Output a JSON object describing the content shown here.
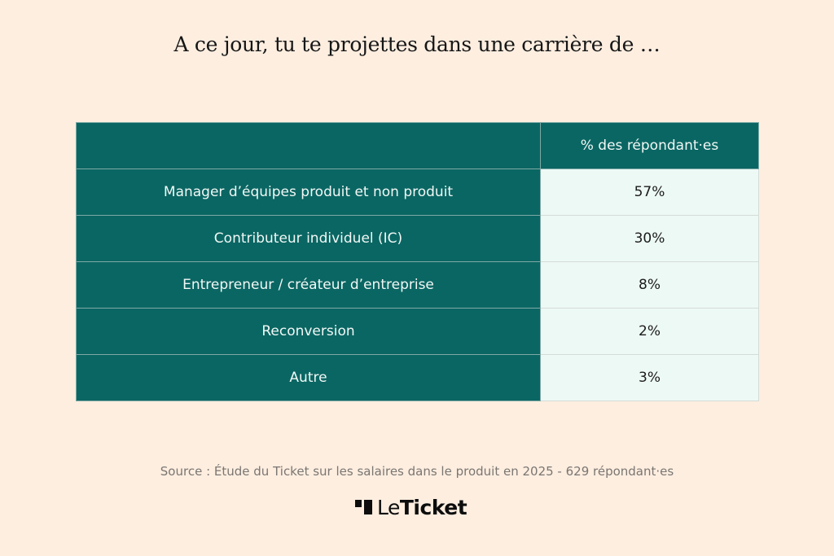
{
  "title": "A ce jour, tu te projettes dans une carrière de …",
  "table": {
    "header": {
      "label": "",
      "value": "% des répondant·es"
    },
    "rows": [
      {
        "label": "Manager d’équipes produit et non produit",
        "value": "57%"
      },
      {
        "label": "Contributeur individuel (IC)",
        "value": "30%"
      },
      {
        "label": "Entrepreneur / créateur d’entreprise",
        "value": "8%"
      },
      {
        "label": "Reconversion",
        "value": "2%"
      },
      {
        "label": "Autre",
        "value": "3%"
      }
    ]
  },
  "source": "Source : Étude du Ticket sur les salaires dans le produit en 2025 - 629 répondant·es",
  "logo": {
    "prefix": "Le",
    "name": "Ticket"
  },
  "colors": {
    "background": "#fdeee0",
    "header_bg": "#0a6663",
    "value_bg": "#edf9f5",
    "text_light": "#f1f8f6",
    "text_dark": "#1b1b1b"
  },
  "chart_data": {
    "type": "table",
    "title": "A ce jour, tu te projettes dans une carrière de …",
    "columns": [
      "",
      "% des répondant·es"
    ],
    "categories": [
      "Manager d’équipes produit et non produit",
      "Contributeur individuel (IC)",
      "Entrepreneur / créateur d’entreprise",
      "Reconversion",
      "Autre"
    ],
    "values": [
      57,
      30,
      8,
      2,
      3
    ],
    "unit": "%",
    "source": "Source : Étude du Ticket sur les salaires dans le produit en 2025 - 629 répondant·es"
  }
}
